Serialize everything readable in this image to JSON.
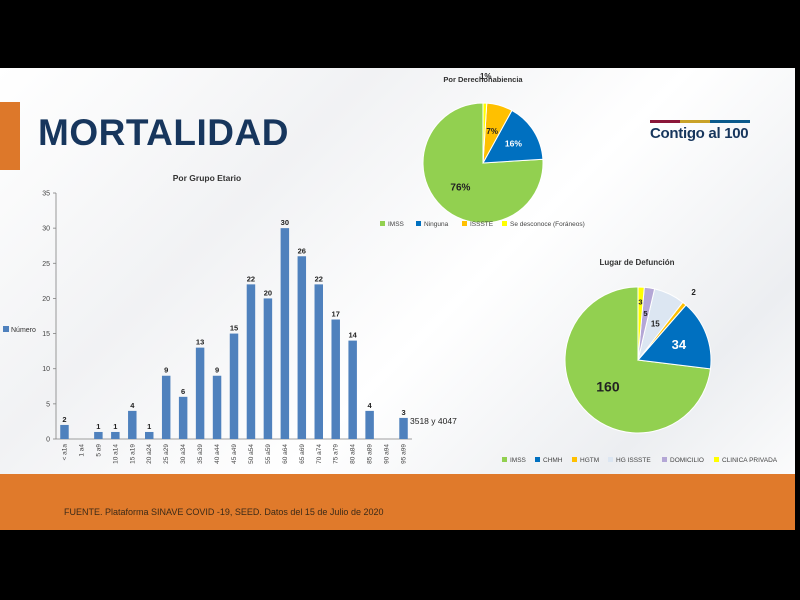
{
  "slide": {
    "title": "MORTALIDAD",
    "logo": "Contigo al 100",
    "source": "FUENTE. Plataforma SINAVE COVID -19, SEED. Datos del 15 de Julio de 2020",
    "colors": {
      "navy": "#17365d",
      "orange": "#e07a2b"
    }
  },
  "chart_data": [
    {
      "type": "bar",
      "title": "Por Grupo Etario",
      "legend": [
        "Número"
      ],
      "legend_position": "left",
      "categories": [
        "< a1a",
        "1 a4",
        "5 a9",
        "10 a14",
        "15 a19",
        "20 a24",
        "25 a29",
        "30 a34",
        "35 a39",
        "40 a44",
        "45 a49",
        "50 a54",
        "55 a59",
        "60 a64",
        "65 a69",
        "70 a74",
        "75 a79",
        "80 a84",
        "85 a89",
        "90 a94",
        "95 a99"
      ],
      "series": [
        {
          "name": "Número",
          "color": "#4f81bd",
          "values": [
            2,
            0,
            1,
            1,
            4,
            1,
            9,
            6,
            13,
            9,
            15,
            22,
            20,
            30,
            26,
            22,
            17,
            14,
            4,
            0,
            3
          ],
          "labels": [
            "2",
            "",
            "1",
            "1",
            "4",
            "1",
            "9",
            "6",
            "13",
            "9",
            "15",
            "22",
            "20",
            "30",
            "26",
            "22",
            "17",
            "14",
            "4",
            "",
            "3"
          ]
        }
      ],
      "ylim": [
        0,
        35
      ],
      "yticks": [
        0,
        5,
        10,
        15,
        20,
        25,
        30,
        35
      ],
      "annotation": "3518 y 4047",
      "grid": false
    },
    {
      "type": "pie",
      "title": "Por Derechohabiencia",
      "labels": [
        "IMSS",
        "Ninguna",
        "ISSSTE",
        "Se desconoce (Foráneos)"
      ],
      "values": [
        76,
        16,
        7,
        1
      ],
      "value_labels": [
        "76%",
        "16%",
        "7%",
        "1%"
      ],
      "colors": [
        "#92d050",
        "#0070c0",
        "#ffc000",
        "#ffff00"
      ],
      "legend_position": "bottom"
    },
    {
      "type": "pie",
      "title": "Lugar de Defunción",
      "labels": [
        "IMSS",
        "CHMH",
        "HGTM",
        "HG ISSSTE",
        "DOMICILIO",
        "CLINICA PRIVADA"
      ],
      "values": [
        160,
        34,
        2,
        15,
        5,
        3
      ],
      "value_labels": [
        "160",
        "34",
        "2",
        "15",
        "5",
        "3"
      ],
      "colors": [
        "#92d050",
        "#0070c0",
        "#ffc000",
        "#dce6f2",
        "#b4a7d6",
        "#ffff00"
      ],
      "legend_position": "bottom"
    }
  ]
}
